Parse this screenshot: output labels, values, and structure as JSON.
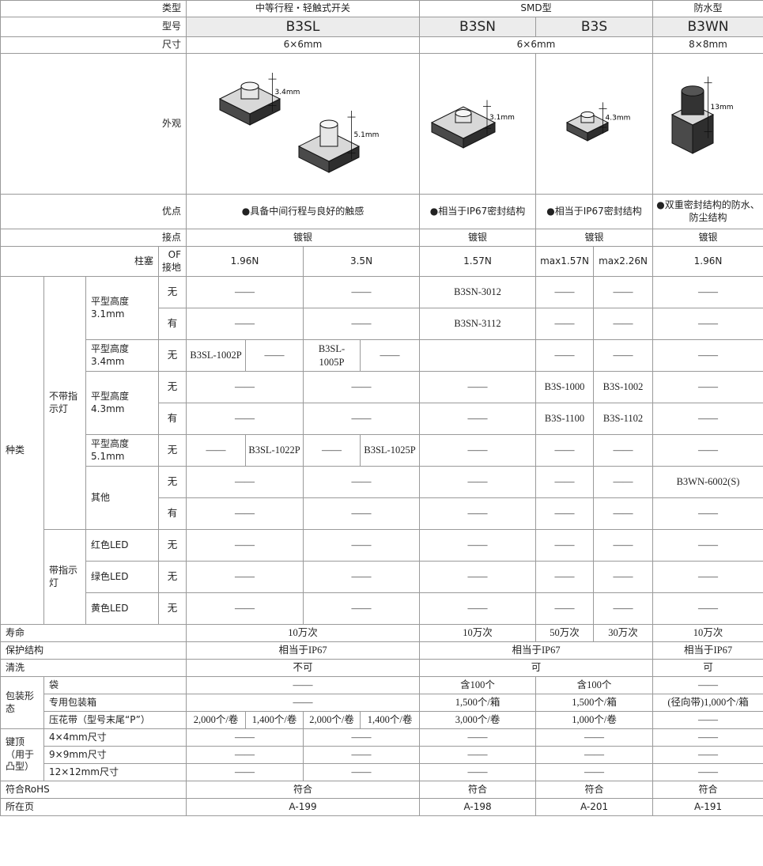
{
  "rows": [
    [
      "类型",
      "中等行程・轻触式开关",
      "SMD型",
      "防水型"
    ],
    [
      "型号",
      "B3SL",
      "B3SN",
      "B3S",
      "B3WN"
    ],
    [
      "尺寸",
      "6×6mm",
      "6×6mm",
      "8×8mm"
    ],
    [
      "优点",
      "●具备中间行程与良好的触感",
      "●相当于IP67密封结构",
      "●相当于IP67密封结构",
      "●双重密封结构的防水、防尘结构"
    ],
    [
      "接点",
      "镀银",
      "镀银",
      "镀银",
      "镀银"
    ],
    [
      "柱塞",
      "OF 接地",
      "1.96N",
      "3.5N",
      "1.57N",
      "max1.57N",
      "max2.26N",
      "1.96N"
    ],
    [
      "种类",
      "不带指示灯",
      "平型高度3.1mm",
      "无",
      "——",
      "——",
      "B3SN-3012",
      "——",
      "——",
      "——"
    ],
    [
      "有",
      "——",
      "——",
      "B3SN-3112",
      "——",
      "——",
      "——"
    ],
    [
      "平型高度3.4mm",
      "无",
      "B3SL-1002P",
      "——",
      "B3SL-1005P",
      "——",
      "——",
      "——",
      "——"
    ],
    [
      "平型高度4.3mm",
      "无",
      "——",
      "——",
      "——",
      "B3S-1000",
      "B3S-1002",
      "——"
    ],
    [
      "有",
      "——",
      "——",
      "——",
      "B3S-1100",
      "B3S-1102",
      "——"
    ],
    [
      "平型高度5.1mm",
      "无",
      "——",
      "B3SL-1022P",
      "——",
      "B3SL-1025P",
      "——",
      "——",
      "——",
      "——"
    ],
    [
      "其他",
      "无",
      "——",
      "——",
      "——",
      "——",
      "——",
      "B3WN-6002(S)"
    ],
    [
      "有",
      "——",
      "——",
      "——",
      "——",
      "——",
      "——"
    ],
    [
      "带指示灯",
      "红色LED",
      "无",
      "——",
      "——",
      "——",
      "——",
      "——",
      "——"
    ],
    [
      "绿色LED",
      "无",
      "——",
      "——",
      "——",
      "——",
      "——",
      "——"
    ],
    [
      "黄色LED",
      "无",
      "——",
      "——",
      "——",
      "——",
      "——",
      "——"
    ],
    [
      "寿命",
      "10万次",
      "10万次",
      "50万次",
      "30万次",
      "10万次"
    ],
    [
      "保护结构",
      "相当于IP67",
      "相当于IP67",
      "相当于IP67"
    ],
    [
      "清洗",
      "不可",
      "可",
      "可"
    ],
    [
      "包装形态",
      "袋",
      "——",
      "含100个",
      "含100个",
      "——"
    ],
    [
      "专用包装箱",
      "——",
      "1,500个/箱",
      "1,500个/箱",
      "(径向带)1,000个/箱"
    ],
    [
      "压花带（型号末尾“P”）",
      "2,000个/卷",
      "1,400个/卷",
      "2,000个/卷",
      "1,400个/卷",
      "3,000个/卷",
      "1,000个/卷",
      "——"
    ],
    [
      "键顶（用于凸型）",
      "4×4mm尺寸",
      "——",
      "——",
      "——",
      "——",
      "——"
    ],
    [
      "9×9mm尺寸",
      "——",
      "——",
      "——",
      "——",
      "——"
    ],
    [
      "12×12mm尺寸",
      "——",
      "——",
      "——",
      "——",
      "——"
    ],
    [
      "符合RoHS",
      "符合",
      "符合",
      "符合",
      "符合"
    ],
    [
      "所在页",
      "A-199",
      "A-198",
      "A-201",
      "A-191"
    ]
  ],
  "appearance": {
    "label": "外观",
    "dims": [
      "3.4mm",
      "5.1mm",
      "3.1mm",
      "4.3mm",
      "13mm"
    ]
  }
}
